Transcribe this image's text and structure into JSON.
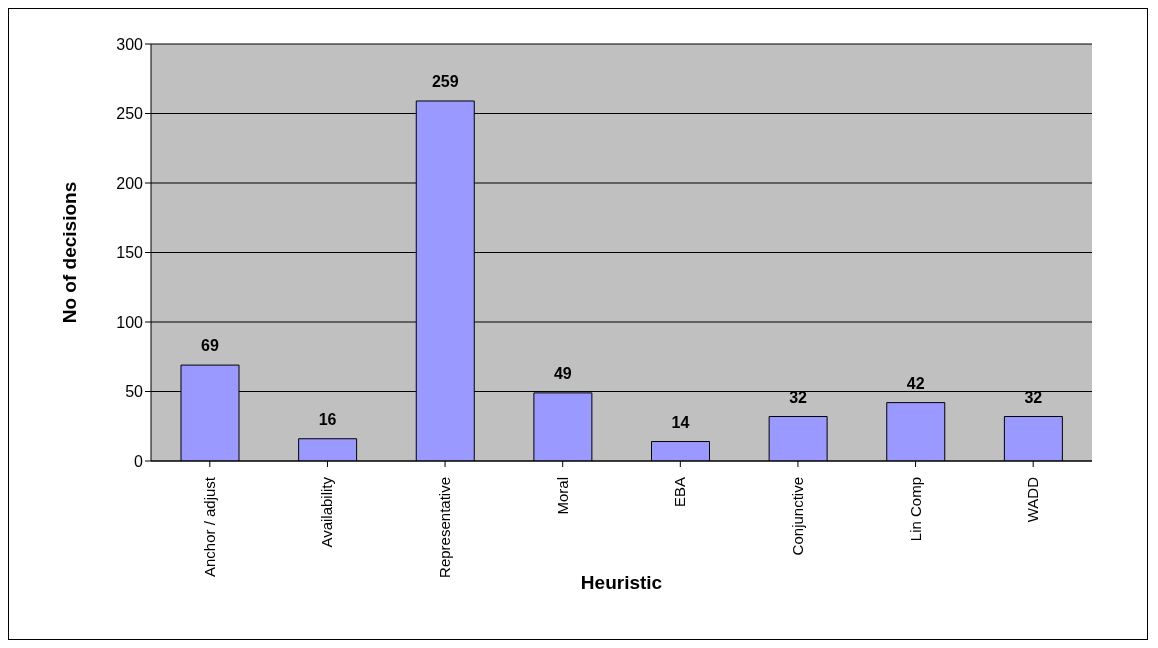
{
  "chart_data": {
    "type": "bar",
    "xlabel": "Heuristic",
    "ylabel": "No of decisions",
    "categories": [
      "Anchor / adjust",
      "Availability",
      "Representative",
      "Moral",
      "EBA",
      "Conjunctive",
      "Lin Comp",
      "WADD"
    ],
    "values": [
      69,
      16,
      259,
      49,
      14,
      32,
      42,
      32
    ],
    "color": "#9999ff",
    "ylim": [
      0,
      300
    ],
    "yticks": [
      0,
      50,
      100,
      150,
      200,
      250,
      300
    ],
    "grid": "y",
    "data_labels": true
  }
}
